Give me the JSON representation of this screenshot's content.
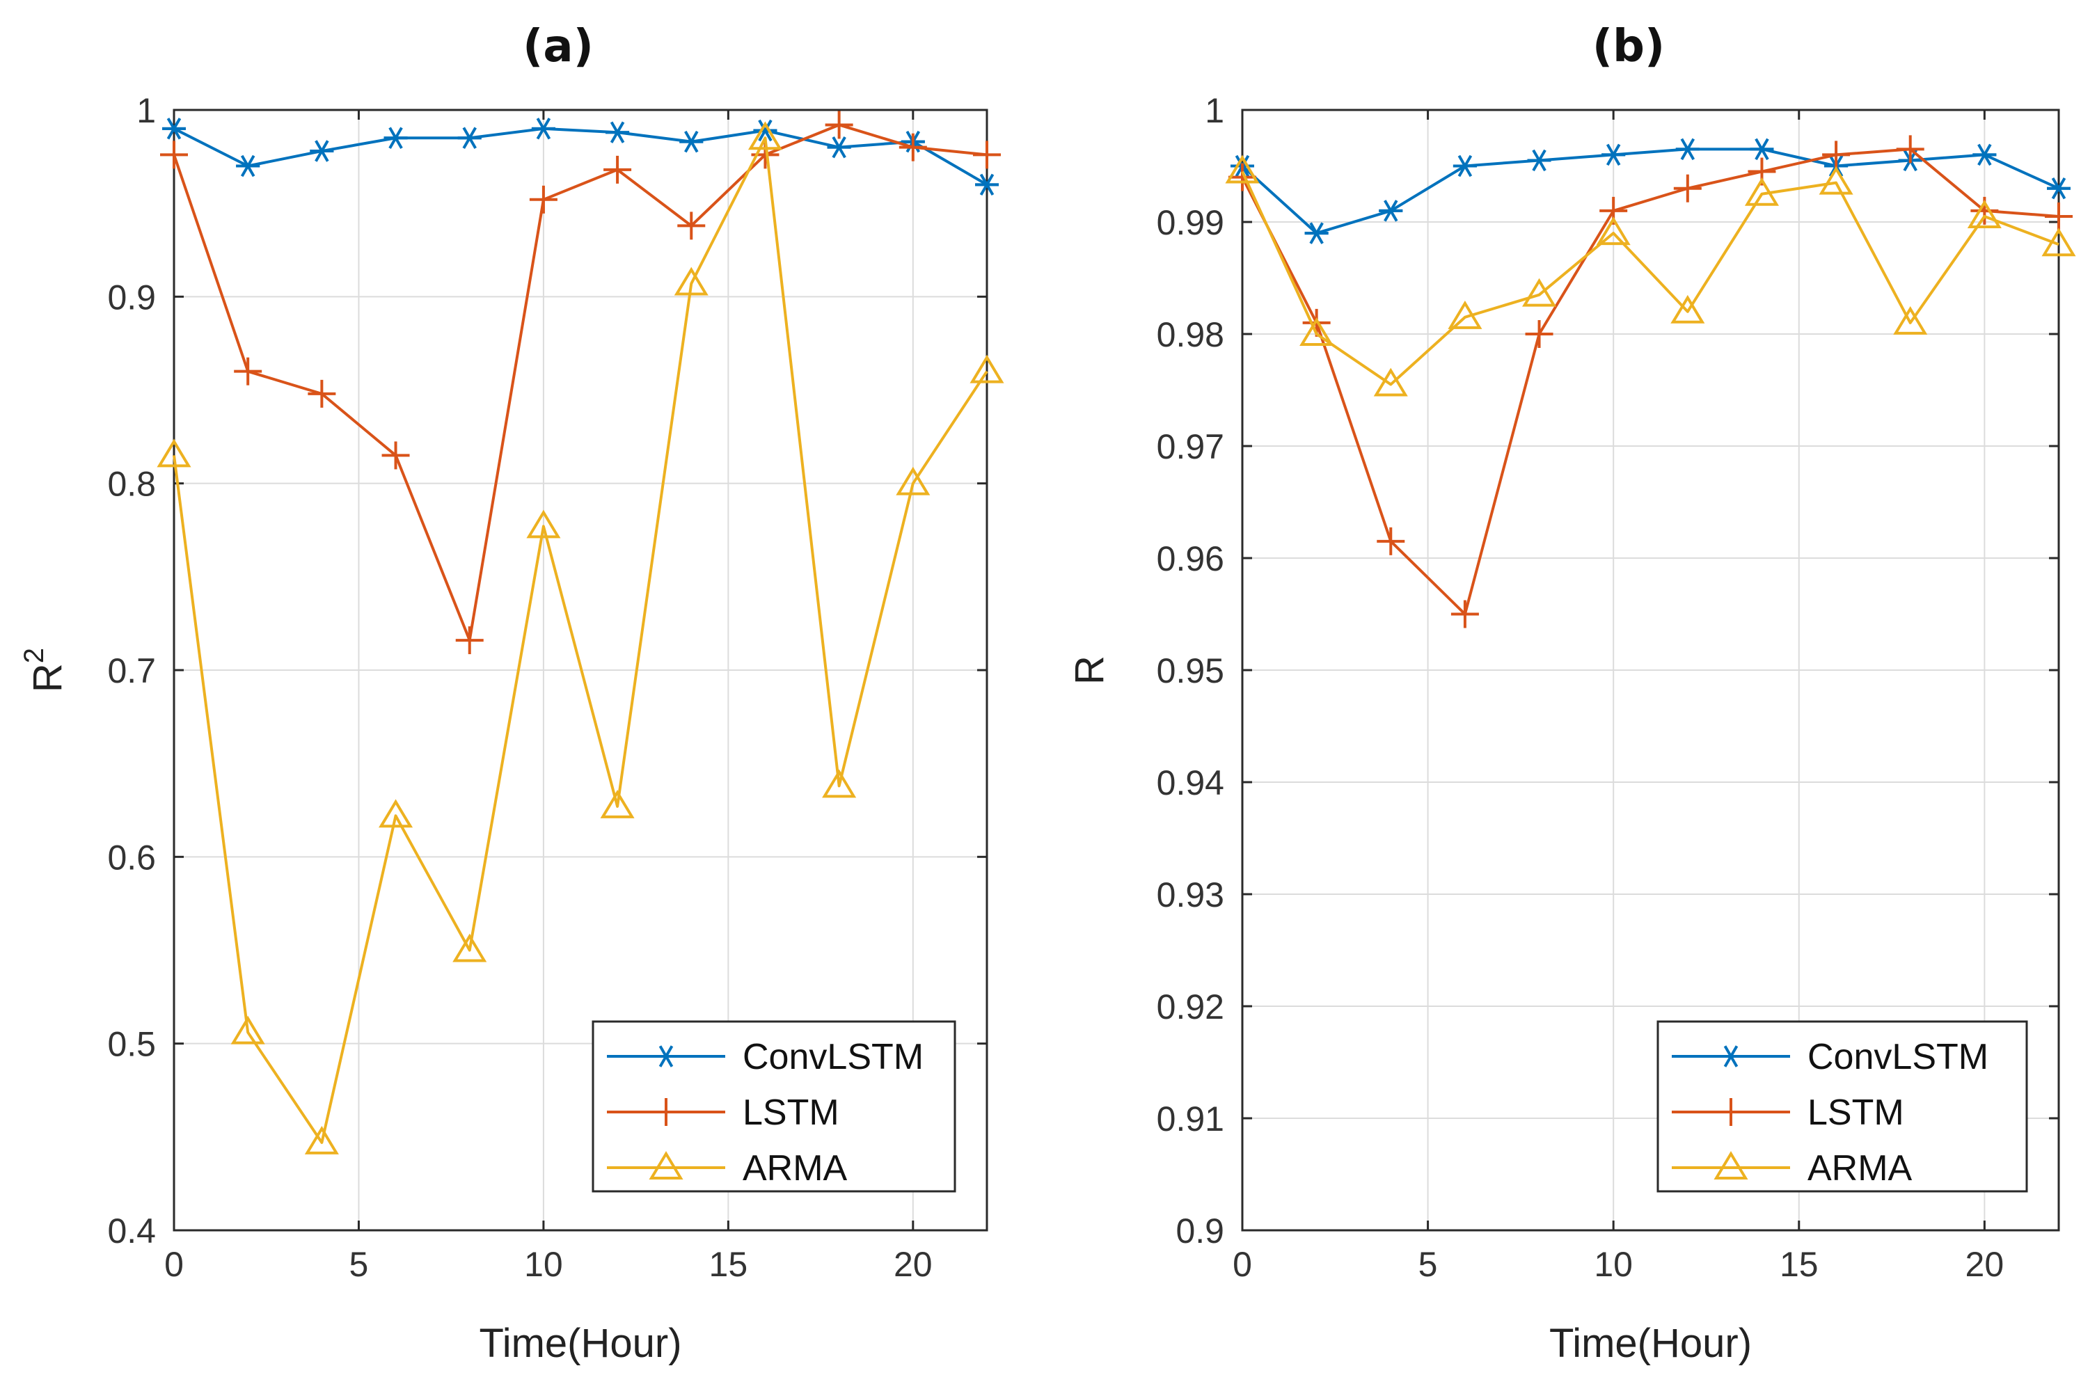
{
  "chart_data": [
    {
      "type": "line",
      "panel_label": "(a)",
      "xlabel": "Time(Hour)",
      "ylabel": "R",
      "ylabel_sup": "2",
      "xlim": [
        0,
        22
      ],
      "ylim": [
        0.4,
        1.0
      ],
      "xticks": [
        0,
        5,
        10,
        15,
        20
      ],
      "yticks": [
        0.4,
        0.5,
        0.6,
        0.7,
        0.8,
        0.9,
        1.0
      ],
      "ytick_labels": [
        "0.4",
        "0.5",
        "0.6",
        "0.7",
        "0.8",
        "0.9",
        "1"
      ],
      "grid": true,
      "legend_position": "bottom-right",
      "x": [
        0,
        2,
        4,
        6,
        8,
        10,
        12,
        14,
        16,
        18,
        20,
        22
      ],
      "series": [
        {
          "name": "ConvLSTM",
          "color": "#0072BD",
          "marker": "asterisk",
          "values": [
            0.99,
            0.97,
            0.978,
            0.985,
            0.985,
            0.99,
            0.988,
            0.983,
            0.989,
            0.98,
            0.983,
            0.96
          ]
        },
        {
          "name": "LSTM",
          "color": "#D95319",
          "marker": "plus",
          "values": [
            0.976,
            0.86,
            0.848,
            0.815,
            0.716,
            0.952,
            0.968,
            0.938,
            0.976,
            0.992,
            0.98,
            0.976
          ]
        },
        {
          "name": "ARMA",
          "color": "#EDB120",
          "marker": "triangle",
          "values": [
            0.815,
            0.506,
            0.447,
            0.622,
            0.55,
            0.777,
            0.627,
            0.907,
            0.985,
            0.638,
            0.8,
            0.86
          ]
        }
      ]
    },
    {
      "type": "line",
      "panel_label": "(b)",
      "xlabel": "Time(Hour)",
      "ylabel": "R",
      "ylabel_sup": "",
      "xlim": [
        0,
        22
      ],
      "ylim": [
        0.9,
        1.0
      ],
      "xticks": [
        0,
        5,
        10,
        15,
        20
      ],
      "yticks": [
        0.9,
        0.91,
        0.92,
        0.93,
        0.94,
        0.95,
        0.96,
        0.97,
        0.98,
        0.99,
        1.0
      ],
      "ytick_labels": [
        "0.9",
        "0.91",
        "0.92",
        "0.93",
        "0.94",
        "0.95",
        "0.96",
        "0.97",
        "0.98",
        "0.99",
        "1"
      ],
      "grid": true,
      "legend_position": "bottom-right",
      "x": [
        0,
        2,
        4,
        6,
        8,
        10,
        12,
        14,
        16,
        18,
        20,
        22
      ],
      "series": [
        {
          "name": "ConvLSTM",
          "color": "#0072BD",
          "marker": "asterisk",
          "values": [
            0.995,
            0.989,
            0.991,
            0.995,
            0.9955,
            0.996,
            0.9965,
            0.9965,
            0.995,
            0.9955,
            0.996,
            0.993
          ]
        },
        {
          "name": "LSTM",
          "color": "#D95319",
          "marker": "plus",
          "values": [
            0.994,
            0.981,
            0.9615,
            0.955,
            0.98,
            0.991,
            0.993,
            0.9945,
            0.996,
            0.9965,
            0.991,
            0.9905
          ]
        },
        {
          "name": "ARMA",
          "color": "#EDB120",
          "marker": "triangle",
          "values": [
            0.9945,
            0.98,
            0.9755,
            0.9815,
            0.9835,
            0.989,
            0.982,
            0.9925,
            0.9935,
            0.981,
            0.9905,
            0.988
          ]
        }
      ]
    }
  ]
}
